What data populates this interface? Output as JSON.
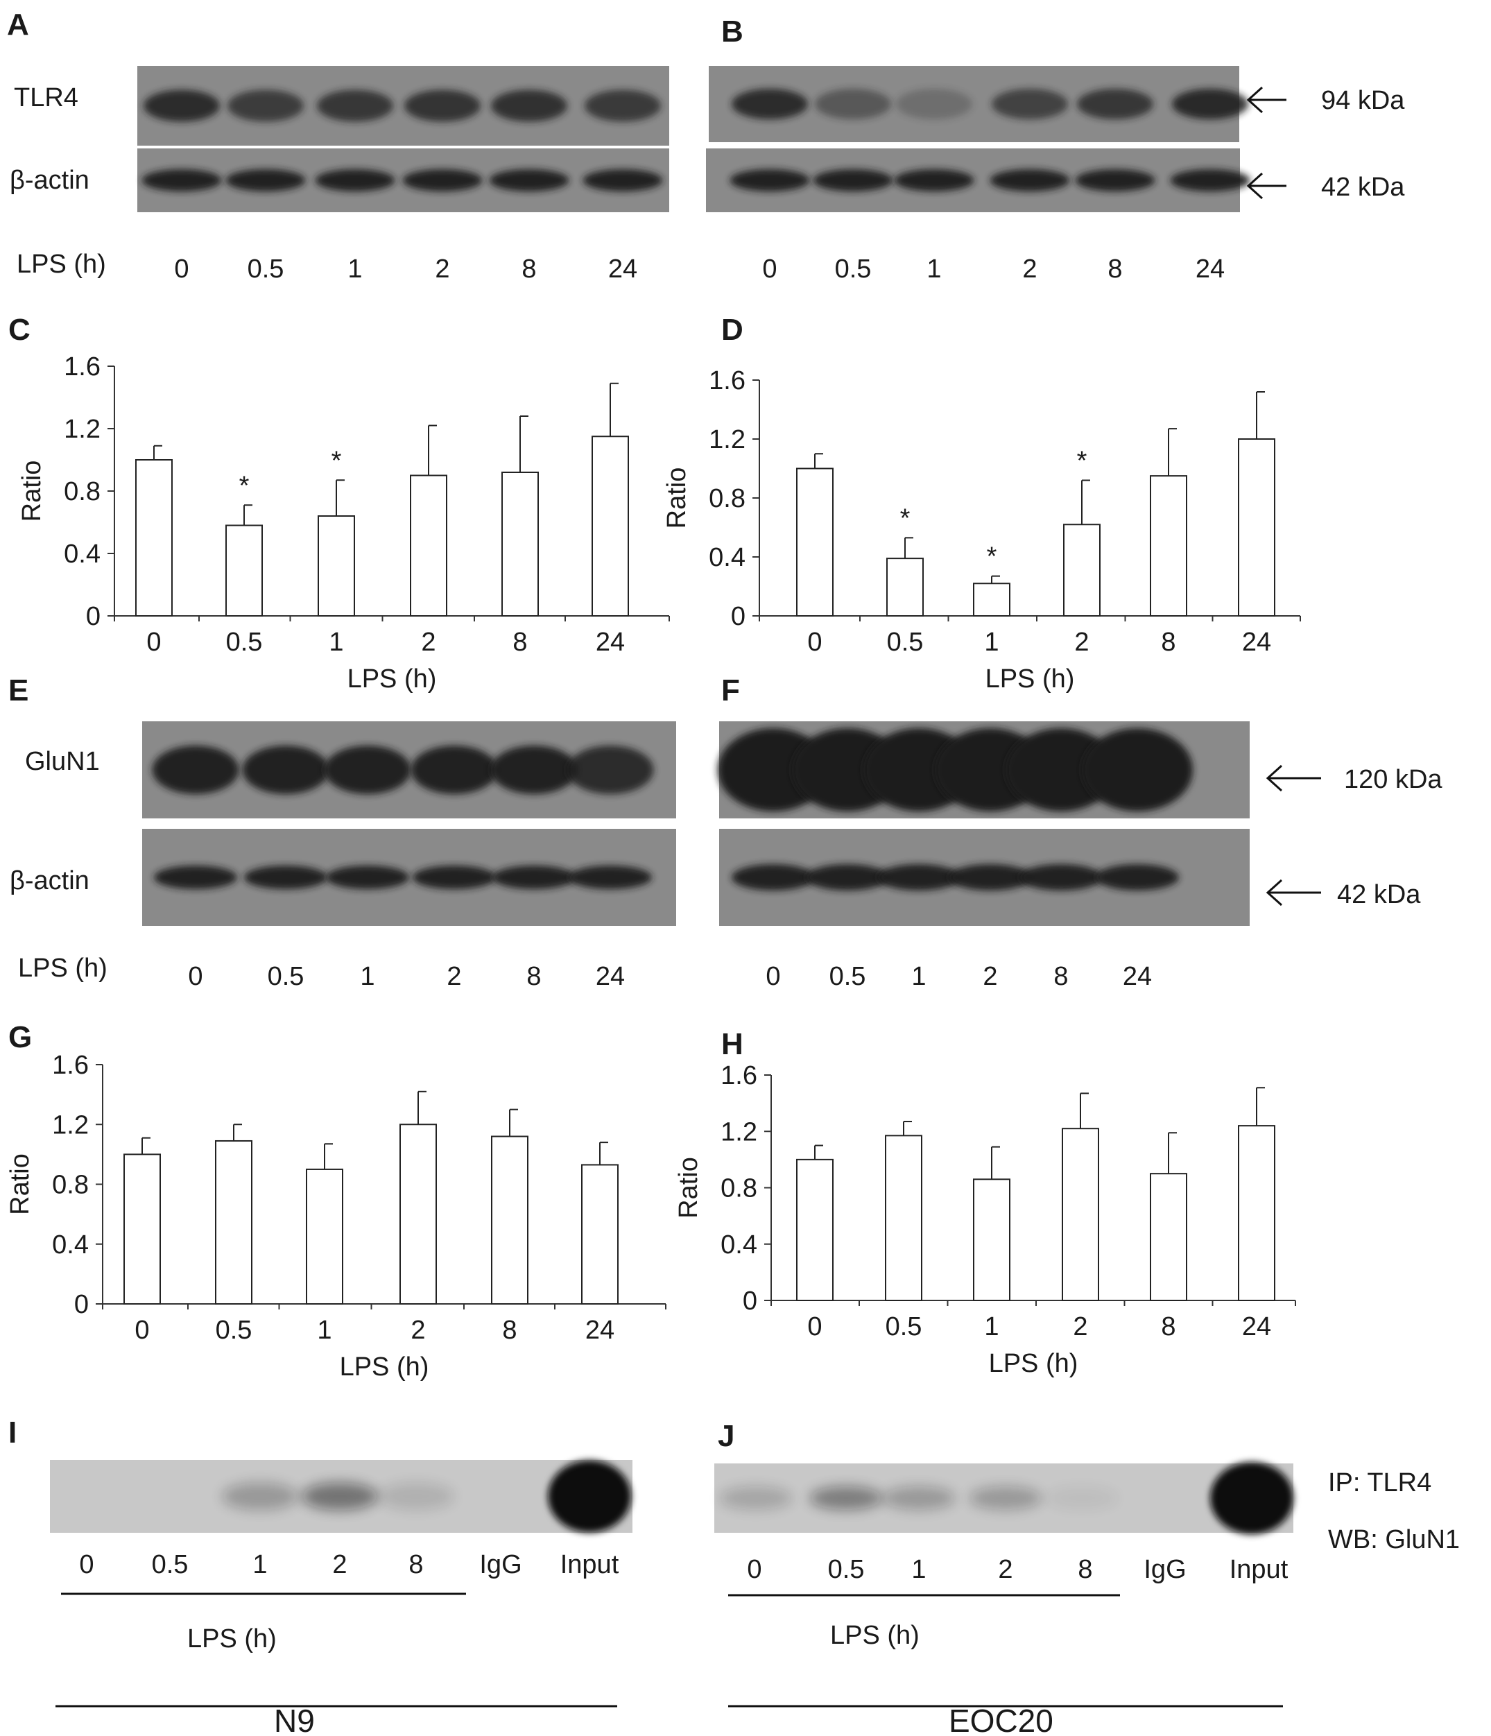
{
  "panel_letters": {
    "a": "A",
    "b": "B",
    "c": "C",
    "d": "D",
    "e": "E",
    "f": "F",
    "g": "G",
    "h": "H",
    "i": "I",
    "j": "J"
  },
  "blot_labels": {
    "tlr4": "TLR4",
    "bactin_1": "β-actin",
    "glun1": "GluN1",
    "bactin_2": "β-actin"
  },
  "markers": {
    "kda94": "94 kDa",
    "kda42a": "42 kDa",
    "kda120": "120 kDa",
    "kda42b": "42 kDa"
  },
  "lps_label": "LPS (h)",
  "timepoints": [
    "0",
    "0.5",
    "1",
    "2",
    "8",
    "24"
  ],
  "ip_lanes": [
    "0",
    "0.5",
    "1",
    "2",
    "8",
    "IgG",
    "Input"
  ],
  "ip_info": {
    "ip": "IP: TLR4",
    "wb": "WB: GluN1"
  },
  "cell_lines": {
    "left": "N9",
    "right": "EOC20"
  },
  "colors": {
    "blot_bg": "#8a8a8a",
    "band": "#1e1e1e",
    "ip_bg": "#c8c8c8"
  },
  "chart_data": [
    {
      "id": "C",
      "type": "bar",
      "categories": [
        "0",
        "0.5",
        "1",
        "2",
        "8",
        "24"
      ],
      "values": [
        1.0,
        0.58,
        0.64,
        0.9,
        0.92,
        1.15
      ],
      "errors": [
        0.09,
        0.13,
        0.23,
        0.32,
        0.36,
        0.34
      ],
      "significant": [
        false,
        true,
        true,
        false,
        false,
        false
      ],
      "star": "*",
      "xlabel": "LPS (h)",
      "ylabel": "Ratio",
      "ylim": [
        0,
        1.6
      ],
      "yticks": [
        "0",
        "0.4",
        "0.8",
        "1.2",
        "1.6"
      ]
    },
    {
      "id": "D",
      "type": "bar",
      "categories": [
        "0",
        "0.5",
        "1",
        "2",
        "8",
        "24"
      ],
      "values": [
        1.0,
        0.39,
        0.22,
        0.62,
        0.95,
        1.2
      ],
      "errors": [
        0.1,
        0.14,
        0.05,
        0.3,
        0.32,
        0.32
      ],
      "significant": [
        false,
        true,
        true,
        true,
        false,
        false
      ],
      "star": "*",
      "xlabel": "LPS (h)",
      "ylabel": "Ratio",
      "ylim": [
        0,
        1.6
      ],
      "yticks": [
        "0",
        "0.4",
        "0.8",
        "1.2",
        "1.6"
      ]
    },
    {
      "id": "G",
      "type": "bar",
      "categories": [
        "0",
        "0.5",
        "1",
        "2",
        "8",
        "24"
      ],
      "values": [
        1.0,
        1.09,
        0.9,
        1.2,
        1.12,
        0.93
      ],
      "errors": [
        0.11,
        0.11,
        0.17,
        0.22,
        0.18,
        0.15
      ],
      "significant": [
        false,
        false,
        false,
        false,
        false,
        false
      ],
      "star": "*",
      "xlabel": "LPS (h)",
      "ylabel": "Ratio",
      "ylim": [
        0,
        1.6
      ],
      "yticks": [
        "0",
        "0.4",
        "0.8",
        "1.2",
        "1.6"
      ]
    },
    {
      "id": "H",
      "type": "bar",
      "categories": [
        "0",
        "0.5",
        "1",
        "2",
        "8",
        "24"
      ],
      "values": [
        1.0,
        1.17,
        0.86,
        1.22,
        0.9,
        1.24
      ],
      "errors": [
        0.1,
        0.1,
        0.23,
        0.25,
        0.29,
        0.27
      ],
      "significant": [
        false,
        false,
        false,
        false,
        false,
        false
      ],
      "star": "*",
      "xlabel": "LPS (h)",
      "ylabel": "Ratio",
      "ylim": [
        0,
        1.6
      ],
      "yticks": [
        "0",
        "0.4",
        "0.8",
        "1.2",
        "1.6"
      ]
    }
  ]
}
